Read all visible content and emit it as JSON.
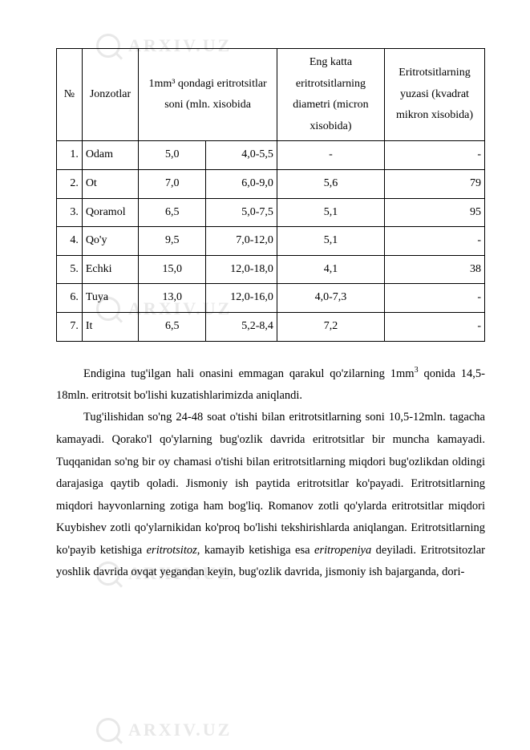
{
  "watermark": {
    "text": "ARXIV.UZ"
  },
  "table": {
    "head": {
      "num": "№",
      "animal": "Jonzotlar",
      "mm3_span": "1mm³ qondagi eritrotsitlar soni (mln. xisobida",
      "diameter": "Eng katta eritrotsitlarning diametri (micron xisobida)",
      "area": "Eritrotsitlarning yuzasi (kvadrat mikron xisobida)"
    },
    "rows": [
      {
        "n": "1.",
        "animal": "Odam",
        "v1": "5,0",
        "v2": "4,0-5,5",
        "diam": "-",
        "area": "-"
      },
      {
        "n": "2.",
        "animal": "Ot",
        "v1": "7,0",
        "v2": "6,0-9,0",
        "diam": "5,6",
        "area": "79"
      },
      {
        "n": "3.",
        "animal": "Qoramol",
        "v1": "6,5",
        "v2": "5,0-7,5",
        "diam": "5,1",
        "area": "95"
      },
      {
        "n": "4.",
        "animal": "Qo'y",
        "v1": "9,5",
        "v2": "7,0-12,0",
        "diam": "5,1",
        "area": "-"
      },
      {
        "n": "5.",
        "animal": "Echki",
        "v1": "15,0",
        "v2": "12,0-18,0",
        "diam": "4,1",
        "area": "38"
      },
      {
        "n": "6.",
        "animal": "Tuya",
        "v1": "13,0",
        "v2": "12,0-16,0",
        "diam": "4,0-7,3",
        "area": "-"
      },
      {
        "n": "7.",
        "animal": "It",
        "v1": "6,5",
        "v2": "5,2-8,4",
        "diam": "7,2",
        "area": "-"
      }
    ]
  },
  "paragraphs": {
    "p1_a": "Endigina tug'ilgan hali onasini emmagan qarakul qo'zilarning 1mm",
    "p1_b": " qonida 14,5-18mln. eritrotsit bo'lishi kuzatishlarimizda aniqlandi.",
    "p1_sup": "3",
    "p2_a": "Tug'ilishidan so'ng 24-48 soat o'tishi bilan eritrotsitlarning soni 10,5-12mln. tagacha kamayadi. Qorako'l qo'ylarning bug'ozlik davrida eritrotsitlar bir muncha kamayadi. Tuqqanidan so'ng bir oy chamasi o'tishi bilan eritrotsitlarning miqdori bug'ozlikdan oldingi darajasiga qaytib qoladi. Jismoniy ish paytida eritrotsitlar ko'payadi. Eritrotsitlarning miqdori hayvonlarning zotiga ham bog'liq. Romanov zotli qo'ylarda eritrotsitlar miqdori Kuybishev zotli qo'ylarnikidan ko'proq bo'lishi tekshirishlarda aniqlangan. Eritrotsitlarning ko'payib ketishiga ",
    "p2_em1": "eritrotsitoz",
    "p2_b": ", kamayib ketishiga esa ",
    "p2_em2": "eritropeniya",
    "p2_c": " deyiladi. Eritrotsitozlar yoshlik davrida ovqat yegandan keyin, bug'ozlik davrida, jismoniy ish bajarganda, dori-"
  }
}
